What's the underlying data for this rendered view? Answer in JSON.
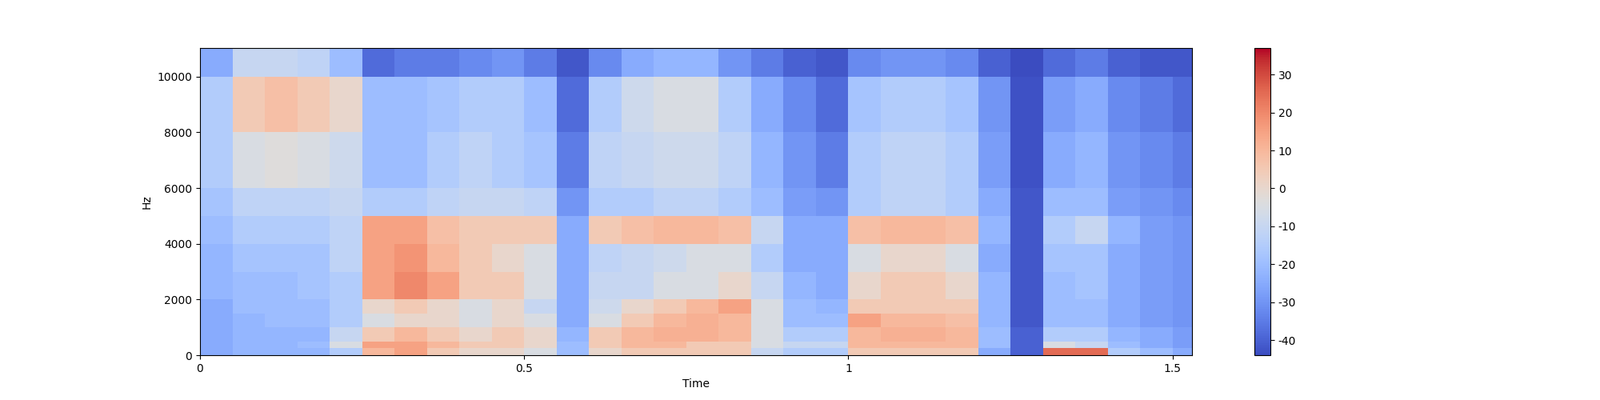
{
  "chart_data": {
    "type": "heatmap",
    "x_label": "Time",
    "y_label": "Hz",
    "color": "coolwarm",
    "xlim": [
      0,
      1.53
    ],
    "ylim": [
      0,
      11025
    ],
    "xticks": [
      0,
      0.5,
      1,
      1.5
    ],
    "yticks": [
      0,
      2000,
      4000,
      6000,
      8000,
      10000
    ],
    "x_edges": [
      0,
      0.05,
      0.1,
      0.15,
      0.2,
      0.25,
      0.3,
      0.35,
      0.4,
      0.45,
      0.5,
      0.55,
      0.6,
      0.65,
      0.7,
      0.75,
      0.8,
      0.85,
      0.9,
      0.95,
      1.0,
      1.05,
      1.1,
      1.15,
      1.2,
      1.25,
      1.3,
      1.35,
      1.4,
      1.45,
      1.5,
      1.53
    ],
    "y_edges": [
      0,
      250,
      500,
      1000,
      1500,
      2000,
      3000,
      4000,
      5000,
      6000,
      8000,
      10000,
      11025
    ],
    "cells": [
      [
        -25,
        -22,
        -22,
        -22,
        -15,
        10,
        15,
        5,
        0,
        0,
        -5,
        -20,
        0,
        5,
        5,
        5,
        5,
        -10,
        -15,
        -15,
        5,
        5,
        5,
        5,
        -25,
        -40,
        25,
        25,
        -15,
        -20,
        -25
      ],
      [
        -25,
        -22,
        -22,
        -20,
        -5,
        15,
        15,
        10,
        5,
        5,
        0,
        -20,
        5,
        10,
        10,
        5,
        5,
        -5,
        -10,
        -10,
        10,
        10,
        10,
        10,
        -20,
        -40,
        -5,
        -10,
        -20,
        -25,
        -28
      ],
      [
        -25,
        -22,
        -22,
        -22,
        -10,
        5,
        10,
        5,
        0,
        5,
        0,
        -22,
        5,
        10,
        12,
        12,
        10,
        -5,
        -15,
        -15,
        10,
        12,
        12,
        10,
        -20,
        -40,
        -15,
        -15,
        -22,
        -25,
        -28
      ],
      [
        -25,
        -22,
        -20,
        -20,
        -15,
        -5,
        0,
        0,
        -5,
        0,
        -5,
        -25,
        -5,
        5,
        10,
        12,
        10,
        -5,
        -20,
        -20,
        15,
        10,
        10,
        8,
        -22,
        -42,
        -20,
        -20,
        -25,
        -28,
        -30
      ],
      [
        -25,
        -20,
        -20,
        -20,
        -15,
        0,
        5,
        0,
        -5,
        0,
        -10,
        -25,
        -8,
        0,
        5,
        10,
        15,
        -5,
        -20,
        -22,
        5,
        5,
        5,
        5,
        -22,
        -42,
        -20,
        -20,
        -25,
        -28,
        -30
      ],
      [
        -22,
        -20,
        -20,
        -18,
        -15,
        15,
        20,
        15,
        5,
        5,
        -5,
        -25,
        -10,
        -10,
        -5,
        -5,
        0,
        -10,
        -22,
        -25,
        0,
        5,
        5,
        0,
        -22,
        -42,
        -20,
        -18,
        -25,
        -28,
        -30
      ],
      [
        -22,
        -18,
        -18,
        -18,
        -12,
        15,
        18,
        10,
        5,
        0,
        -5,
        -25,
        -12,
        -10,
        -8,
        -5,
        -5,
        -15,
        -25,
        -25,
        -5,
        0,
        0,
        -5,
        -25,
        -42,
        -18,
        -18,
        -25,
        -28,
        -30
      ],
      [
        -20,
        -15,
        -15,
        -15,
        -12,
        15,
        15,
        8,
        5,
        5,
        5,
        -25,
        5,
        8,
        10,
        10,
        8,
        -10,
        -25,
        -25,
        8,
        10,
        10,
        8,
        -22,
        -42,
        -15,
        -10,
        -22,
        -28,
        -30
      ],
      [
        -18,
        -12,
        -12,
        -12,
        -10,
        -15,
        -15,
        -12,
        -10,
        -10,
        -12,
        -30,
        -15,
        -15,
        -12,
        -12,
        -15,
        -20,
        -28,
        -30,
        -15,
        -12,
        -12,
        -15,
        -25,
        -42,
        -20,
        -20,
        -28,
        -30,
        -32
      ],
      [
        -15,
        -5,
        -3,
        -5,
        -8,
        -20,
        -20,
        -15,
        -12,
        -15,
        -18,
        -35,
        -12,
        -10,
        -8,
        -8,
        -12,
        -22,
        -30,
        -35,
        -15,
        -12,
        -12,
        -15,
        -28,
        -43,
        -25,
        -22,
        -30,
        -32,
        -35
      ],
      [
        -15,
        5,
        8,
        5,
        0,
        -20,
        -20,
        -18,
        -15,
        -15,
        -20,
        -38,
        -15,
        -8,
        -5,
        -5,
        -15,
        -25,
        -32,
        -38,
        -18,
        -15,
        -15,
        -18,
        -30,
        -43,
        -28,
        -25,
        -32,
        -35,
        -38
      ],
      [
        -25,
        -10,
        -10,
        -12,
        -20,
        -38,
        -35,
        -35,
        -32,
        -30,
        -35,
        -42,
        -32,
        -25,
        -22,
        -22,
        -30,
        -35,
        -40,
        -42,
        -32,
        -30,
        -30,
        -32,
        -40,
        -44,
        -38,
        -35,
        -40,
        -42,
        -42
      ]
    ],
    "colorbar": {
      "range": [
        -44,
        37
      ],
      "ticks": [
        -40,
        -30,
        -20,
        -10,
        0,
        10,
        20,
        30
      ]
    }
  }
}
